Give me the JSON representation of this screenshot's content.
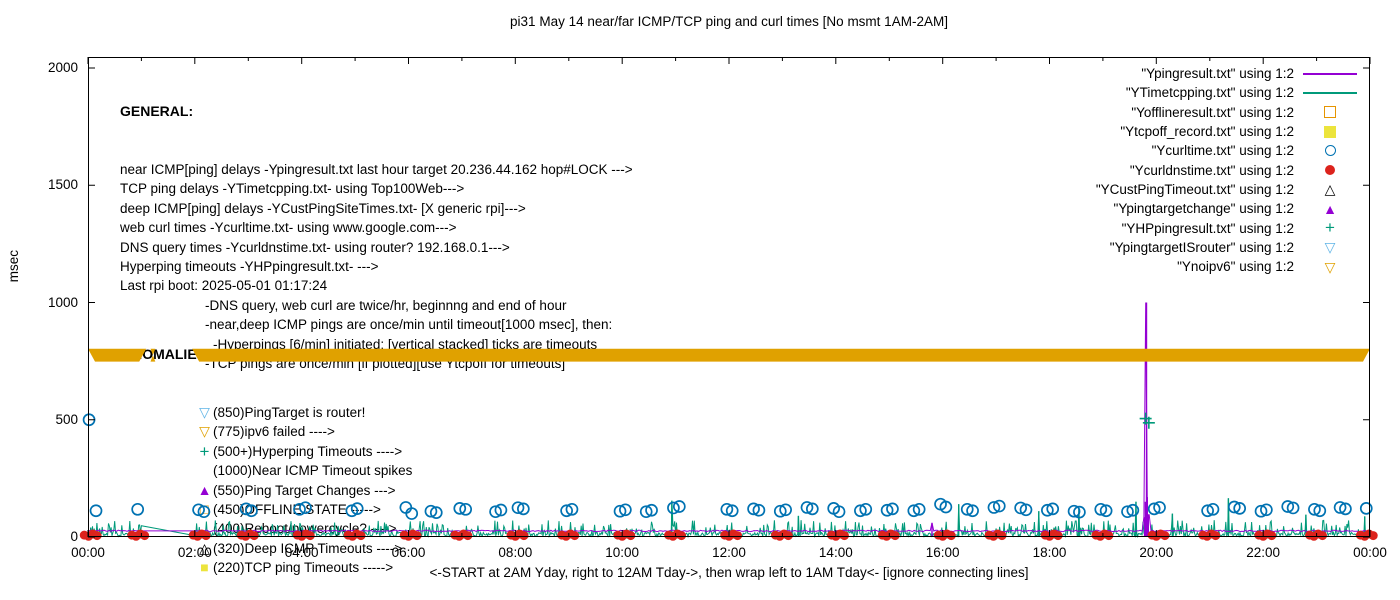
{
  "chart_data": {
    "type": "line",
    "title": "pi31 May 14  near/far ICMP/TCP ping and curl times [No msmt 1AM-2AM]",
    "xlabel": "<-START at 2AM Yday, right to 12AM Tday->, then wrap left to 1AM Tday<- [ignore connecting lines]",
    "ylabel": "msec",
    "xlim_hours": [
      0,
      24
    ],
    "ylim": [
      0,
      2000
    ],
    "grid": false,
    "legend_position": "top-right",
    "xticks": [
      {
        "h": 0,
        "label": "00:00"
      },
      {
        "h": 2,
        "label": "02:00"
      },
      {
        "h": 4,
        "label": "04:00"
      },
      {
        "h": 6,
        "label": "06:00"
      },
      {
        "h": 8,
        "label": "08:00"
      },
      {
        "h": 10,
        "label": "10:00"
      },
      {
        "h": 12,
        "label": "12:00"
      },
      {
        "h": 14,
        "label": "14:00"
      },
      {
        "h": 16,
        "label": "16:00"
      },
      {
        "h": 18,
        "label": "18:00"
      },
      {
        "h": 20,
        "label": "20:00"
      },
      {
        "h": 22,
        "label": "22:00"
      },
      {
        "h": 24,
        "label": "00:00"
      }
    ],
    "yticks": [
      0,
      500,
      1000,
      1500,
      2000
    ],
    "no_measurement_gap_hours": [
      1.0,
      2.0
    ],
    "series": [
      {
        "name": "YTimetcpping.txt",
        "kind": "line",
        "color": "#009a7a",
        "step_min": 1,
        "baseline": 11,
        "jitter": 9,
        "spike_prob": 0.2,
        "spike_base": 22,
        "spike_amp": 50,
        "gap": [
          1.0,
          2.0
        ],
        "pre_gap_value": 48,
        "post_gap_value": 6,
        "spikes": [
          [
            0.05,
            40
          ],
          [
            10.93,
            155
          ],
          [
            13.3,
            90
          ],
          [
            16.3,
            140
          ],
          [
            17.8,
            110
          ],
          [
            18.55,
            120
          ],
          [
            19.62,
            150
          ],
          [
            20.3,
            100
          ],
          [
            21.35,
            165
          ],
          [
            22.8,
            95
          ],
          [
            23.9,
            88
          ]
        ]
      },
      {
        "name": "Ypingresult.txt",
        "kind": "line",
        "color": "#9400d3",
        "step_min": 2,
        "baseline": 26,
        "jitter": 3,
        "spike_prob": 0,
        "spike_base": 0,
        "spike_amp": 0,
        "gap": [
          1.0,
          2.0
        ],
        "pre_gap_value": 26,
        "post_gap_value": 26,
        "spikes": [
          [
            15.8,
            60
          ],
          [
            19.78,
            85
          ],
          [
            19.795,
            150
          ],
          [
            19.815,
            1000
          ],
          [
            19.83,
            170
          ],
          [
            19.85,
            95
          ]
        ]
      },
      {
        "name": "Ycurltime.txt",
        "kind": "points",
        "marker": "open-circle",
        "color": "#0072b2",
        "r": 5.5,
        "points": [
          [
            0.02,
            500
          ],
          [
            0.15,
            112
          ],
          [
            0.93,
            118
          ],
          [
            2.07,
            116
          ],
          [
            2.17,
            108
          ],
          [
            2.96,
            120
          ],
          [
            3.06,
            112
          ],
          [
            3.96,
            118
          ],
          [
            4.07,
            125
          ],
          [
            4.94,
            112
          ],
          [
            5.04,
            121
          ],
          [
            5.95,
            126
          ],
          [
            6.06,
            100
          ],
          [
            6.42,
            110
          ],
          [
            6.52,
            104
          ],
          [
            6.96,
            122
          ],
          [
            7.07,
            118
          ],
          [
            7.63,
            108
          ],
          [
            7.73,
            115
          ],
          [
            8.05,
            125
          ],
          [
            8.15,
            120
          ],
          [
            8.96,
            112
          ],
          [
            9.06,
            118
          ],
          [
            9.96,
            110
          ],
          [
            10.06,
            116
          ],
          [
            10.45,
            108
          ],
          [
            10.55,
            114
          ],
          [
            10.96,
            124
          ],
          [
            11.07,
            130
          ],
          [
            11.96,
            118
          ],
          [
            12.06,
            112
          ],
          [
            12.46,
            120
          ],
          [
            12.56,
            114
          ],
          [
            12.96,
            110
          ],
          [
            13.06,
            116
          ],
          [
            13.46,
            126
          ],
          [
            13.56,
            120
          ],
          [
            13.96,
            122
          ],
          [
            14.06,
            108
          ],
          [
            14.46,
            112
          ],
          [
            14.56,
            118
          ],
          [
            14.96,
            114
          ],
          [
            15.06,
            120
          ],
          [
            15.46,
            112
          ],
          [
            15.56,
            118
          ],
          [
            15.96,
            140
          ],
          [
            16.06,
            128
          ],
          [
            16.46,
            118
          ],
          [
            16.56,
            112
          ],
          [
            16.96,
            126
          ],
          [
            17.06,
            132
          ],
          [
            17.46,
            124
          ],
          [
            17.56,
            116
          ],
          [
            17.96,
            114
          ],
          [
            18.06,
            120
          ],
          [
            18.46,
            110
          ],
          [
            18.56,
            106
          ],
          [
            18.96,
            118
          ],
          [
            19.06,
            112
          ],
          [
            19.46,
            108
          ],
          [
            19.56,
            114
          ],
          [
            19.96,
            120
          ],
          [
            20.06,
            126
          ],
          [
            20.96,
            112
          ],
          [
            21.06,
            118
          ],
          [
            21.46,
            128
          ],
          [
            21.56,
            122
          ],
          [
            21.96,
            110
          ],
          [
            22.06,
            116
          ],
          [
            22.46,
            130
          ],
          [
            22.56,
            124
          ],
          [
            22.96,
            118
          ],
          [
            23.06,
            112
          ],
          [
            23.44,
            126
          ],
          [
            23.54,
            120
          ],
          [
            23.93,
            122
          ]
        ]
      },
      {
        "name": "Ycurldnstime.txt",
        "kind": "clusters",
        "marker": "filled-circle",
        "color": "#dc231c",
        "r": 4.5,
        "centers": [
          0.06,
          0.95,
          2.1,
          3.0,
          4.05,
          5.0,
          6.05,
          7.0,
          8.05,
          9.0,
          10.05,
          11.0,
          12.05,
          13.0,
          14.05,
          15.0,
          16.05,
          17.0,
          18.05,
          19.0,
          20.05,
          21.0,
          22.05,
          23.0,
          23.95
        ],
        "offsets": [
          -0.13,
          -0.05,
          0.03,
          0.11
        ],
        "values": [
          8,
          3,
          13,
          6
        ]
      },
      {
        "name": "YHPpingresult.txt",
        "kind": "points",
        "marker": "plus",
        "color": "#009a7a",
        "r": 6,
        "points": [
          [
            19.8,
            505
          ],
          [
            19.86,
            487
          ]
        ]
      },
      {
        "name": "Ynoipv6",
        "kind": "band",
        "color": "#e0a100",
        "y_range_msec": [
          748,
          803
        ],
        "segments_hours": [
          [
            0,
            1.09
          ],
          [
            1.17,
            1.26
          ],
          [
            1.95,
            24
          ]
        ]
      }
    ]
  },
  "legend": {
    "items": [
      {
        "label": "\"Ypingresult.txt\" using 1:2",
        "sample": "line",
        "color": "#9400d3"
      },
      {
        "label": "\"YTimetcpping.txt\" using 1:2",
        "sample": "line",
        "color": "#009a7a"
      },
      {
        "label": "\"Yofflineresult.txt\" using 1:2",
        "sample": "open-square",
        "color": "#e69500"
      },
      {
        "label": "\"Ytcpoff_record.txt\" using 1:2",
        "sample": "filled-square",
        "color": "#ece43c"
      },
      {
        "label": "\"Ycurltime.txt\" using 1:2",
        "sample": "open-circle",
        "color": "#0072b2"
      },
      {
        "label": "\"Ycurldnstime.txt\" using 1:2",
        "sample": "filled-circle",
        "color": "#dc231c"
      },
      {
        "label": "\"YCustPingTimeout.txt\" using 1:2",
        "sample": "open-triangle",
        "color": "#000000"
      },
      {
        "label": "\"Ypingtargetchange\" using 1:2",
        "sample": "filled-triangle",
        "color": "#9400d3"
      },
      {
        "label": "\"YHPpingresult.txt\" using 1:2",
        "sample": "plus",
        "color": "#009a7a"
      },
      {
        "label": "\"YpingtargetISrouter\" using 1:2",
        "sample": "open-inv-triangle",
        "color": "#5fb4e6"
      },
      {
        "label": "\"Ynoipv6\" using 1:2",
        "sample": "open-inv-triangle",
        "color": "#e0a100"
      }
    ]
  },
  "general": {
    "heading": "GENERAL:",
    "lines": [
      {
        "text": "near ICMP[ping] delays -Ypingresult.txt last hour target 20.236.44.162 hop#LOCK --->",
        "indent": 0
      },
      {
        "text": "TCP ping delays -YTimetcpping.txt- using Top100Web--->",
        "indent": 0
      },
      {
        "text": "deep ICMP[ping] delays -YCustPingSiteTimes.txt- [X generic rpi]--->",
        "indent": 0
      },
      {
        "text": "web curl times -Ycurltime.txt- using www.google.com--->",
        "indent": 0
      },
      {
        "text": "DNS query times -Ycurldnstime.txt- using router? 192.168.0.1--->",
        "indent": 0
      },
      {
        "text": "Hyperping timeouts -YHPpingresult.txt- --->",
        "indent": 0
      },
      {
        "text": "Last rpi boot: 2025-05-01 01:17:24",
        "indent": 0
      },
      {
        "text": "-DNS query, web curl are twice/hr, beginnng and end of hour",
        "indent": 85
      },
      {
        "text": "-near,deep ICMP pings are once/min until timeout[1000 msec], then:",
        "indent": 85
      },
      {
        "text": "-Hyperpings [6/min] initiated; [vertical stacked] ticks are timeouts",
        "indent": 93
      },
      {
        "text": "-TCP pings are once/min [if plotted][use Ytcpoff for timeouts]",
        "indent": 85
      }
    ]
  },
  "anomalies": {
    "heading": "ANOMALIES:",
    "items": [
      {
        "glyph": "▽",
        "color": "#5fb4e6",
        "text": "(850)PingTarget is router!"
      },
      {
        "glyph": "▽",
        "color": "#e0a100",
        "text": "(775)ipv6 failed ---->"
      },
      {
        "glyph": "+",
        "color": "#009a7a",
        "text": "(500+)Hyperping Timeouts ---->"
      },
      {
        "glyph": "",
        "color": "#000000",
        "text": "(1000)Near ICMP Timeout spikes"
      },
      {
        "glyph": "▲",
        "color": "#9400d3",
        "text": "(550)Ping Target Changes --->"
      },
      {
        "glyph": "□",
        "color": "#e69500",
        "text": "(450)OFFLINE STATE ----->"
      },
      {
        "glyph": "",
        "color": "#000000",
        "text": "(400)Reboot/powercycle? ---->"
      },
      {
        "glyph": "△",
        "color": "#000000",
        "text": "(320)Deep ICMP Timeouts ---->"
      },
      {
        "glyph": "■",
        "color": "#ece43c",
        "text": "(220)TCP ping Timeouts ----->"
      }
    ]
  }
}
